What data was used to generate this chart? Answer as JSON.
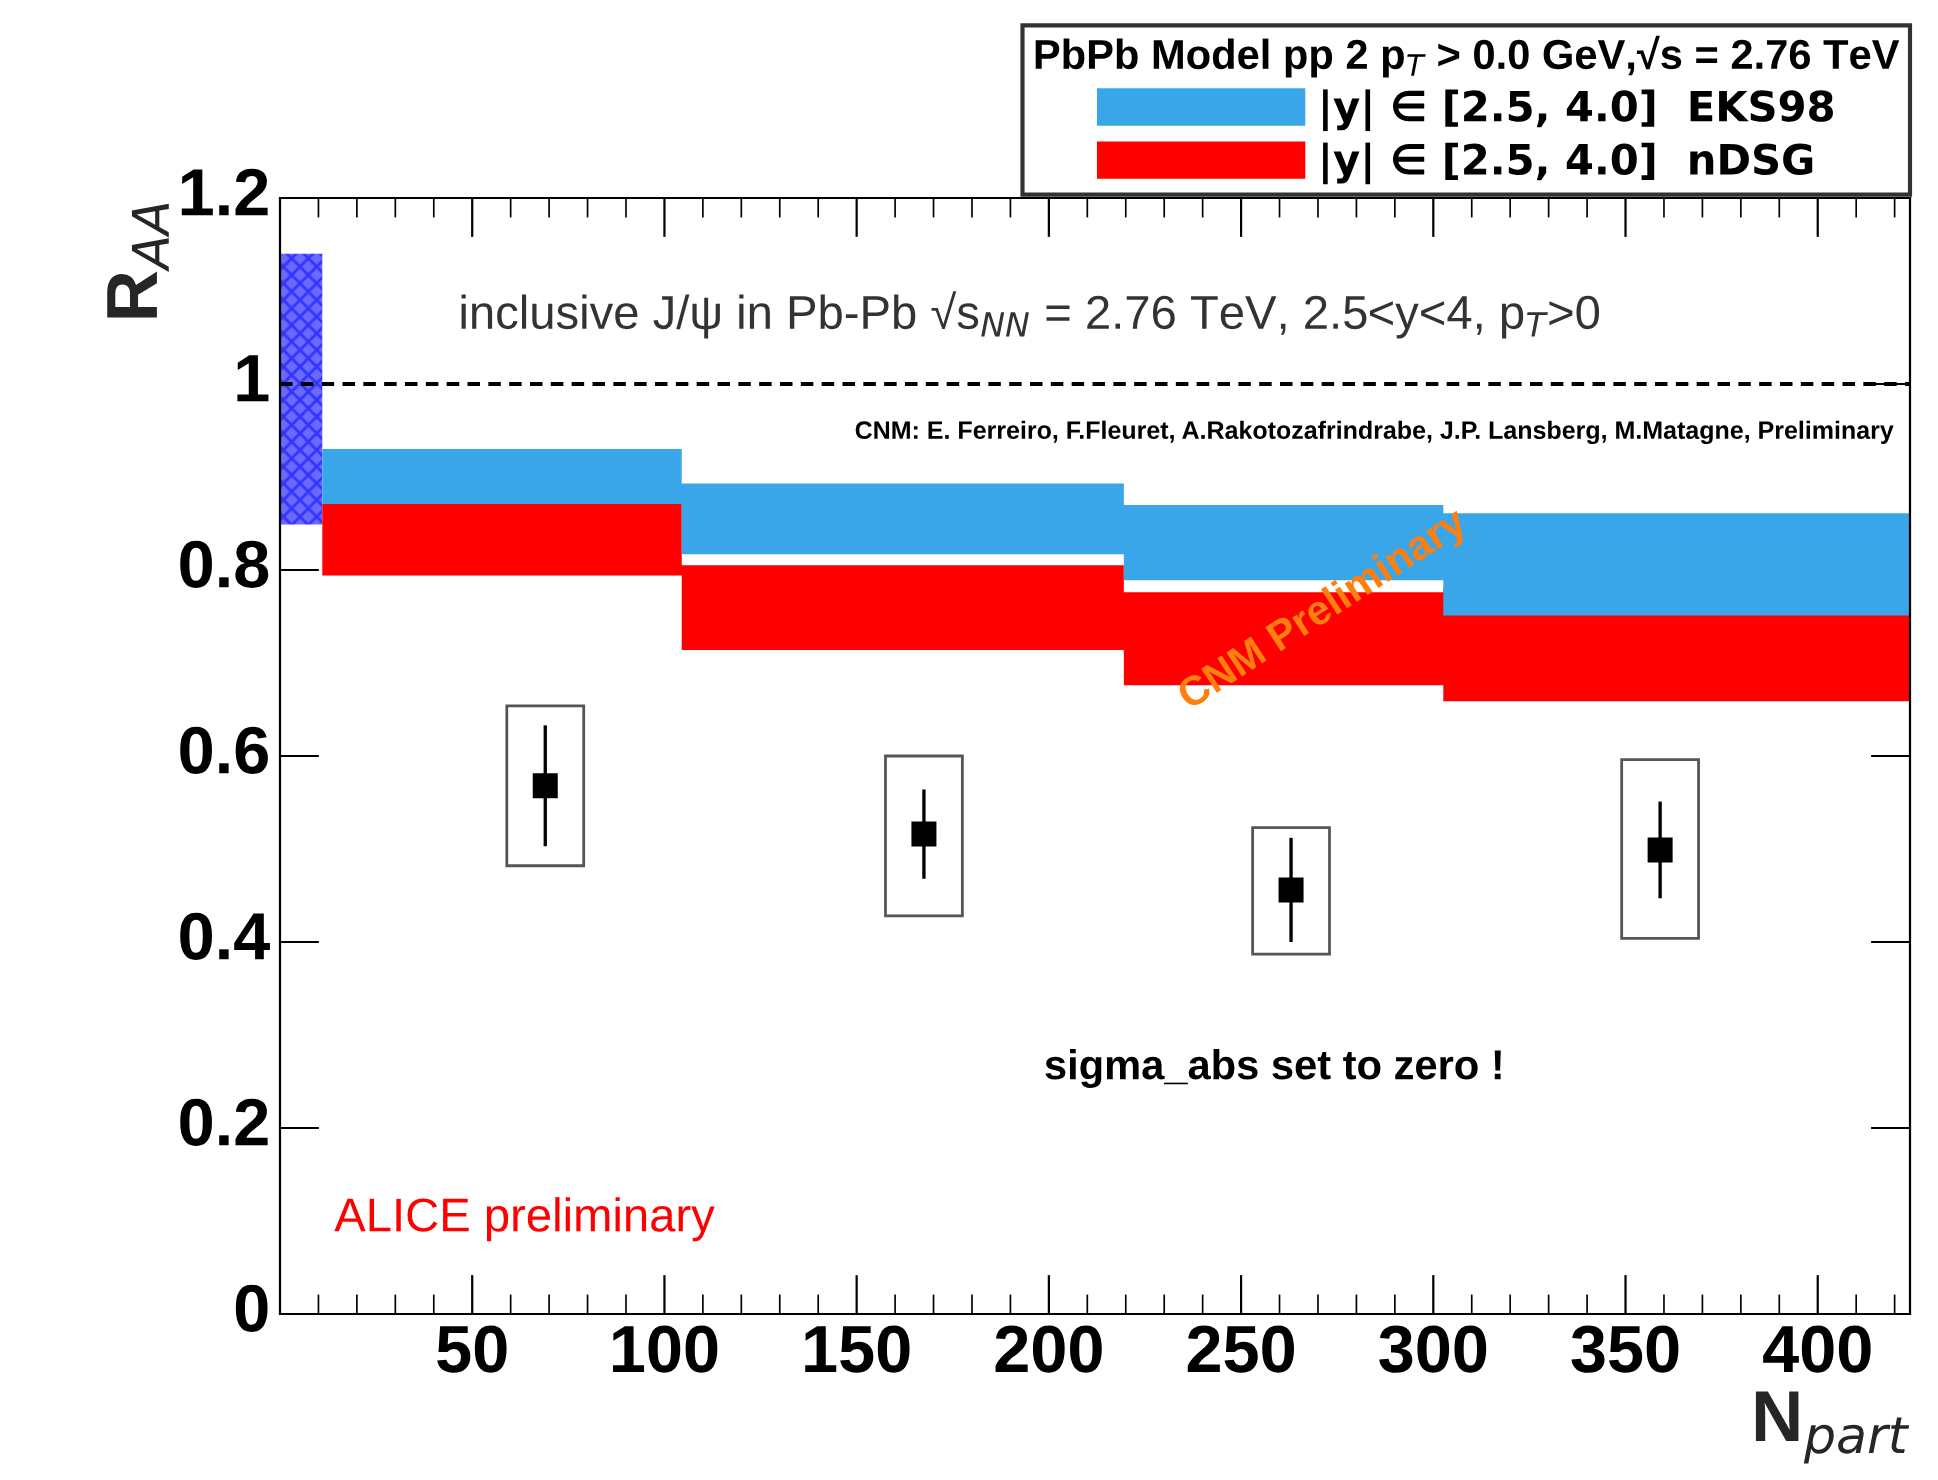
{
  "chart_data": {
    "type": "scatter",
    "xlabel": "N$_{part}$",
    "ylabel": "R$_{AA}$",
    "legend_title": "PbPb Model pp 2 p$_{T}$ > 0.0 GeV,√s = 2.76 TeV",
    "xlim": [
      0,
      424
    ],
    "ylim": [
      0,
      1.2
    ],
    "xticks": [
      50,
      100,
      150,
      200,
      250,
      300,
      350,
      400
    ],
    "yticks": [
      0,
      0.2,
      0.4,
      0.6,
      0.8,
      1,
      1.2
    ],
    "legend": "top right",
    "grid": false,
    "marker": "square",
    "series": [
      {
        "type": "area",
        "color": "#6a6aff",
        "x": [
          0,
          11
        ],
        "values": [
          null,
          null
        ],
        "lower": [
          0.849,
          0.849
        ],
        "upper": [
          1.14,
          1.14
        ]
      },
      {
        "type": "area",
        "name": "|y| ∈ [2.5, 4.0]  nDSG",
        "color": "#ff0000",
        "x": [
          11,
          104.5,
          104.5,
          219.5,
          219.5,
          302.6,
          302.6,
          424
        ],
        "values": [
          null,
          null,
          null,
          null,
          null,
          null,
          null,
          null
        ],
        "lower": [
          0.794,
          0.794,
          0.714,
          0.714,
          0.676,
          0.676,
          0.659,
          0.659
        ],
        "upper": [
          0.871,
          0.871,
          0.805,
          0.805,
          0.776,
          0.776,
          0.781,
          0.781
        ]
      },
      {
        "type": "area",
        "name": "|y| ∈ [2.5, 4.0]  EKS98",
        "color": "#3aa6ea",
        "x": [
          11,
          104.5,
          104.5,
          219.5,
          219.5,
          302.6,
          302.6,
          424
        ],
        "values": [
          null,
          null,
          null,
          null,
          null,
          null,
          null,
          null
        ],
        "lower": [
          0.871,
          0.871,
          0.817,
          0.817,
          0.789,
          0.789,
          0.751,
          0.751
        ],
        "upper": [
          0.93,
          0.93,
          0.893,
          0.893,
          0.87,
          0.87,
          0.861,
          0.861
        ]
      },
      {
        "type": "bar",
        "color": "#555555",
        "x": [
          69,
          167.5,
          263,
          359
        ],
        "base": [
          0.482,
          0.428,
          0.387,
          0.404
        ],
        "values": [
          0.172,
          0.172,
          0.136,
          0.192
        ]
      },
      {
        "color": "#000000",
        "x": [
          69,
          167.5,
          263,
          359
        ],
        "values": [
          0.568,
          0.516,
          0.456,
          0.499
        ],
        "errors": [
          0.065,
          0.048,
          0.056,
          0.052
        ]
      }
    ],
    "ref_lines": [
      {
        "axis": "y",
        "value": 1,
        "color": "#000000",
        "line_style": "dashed"
      }
    ],
    "annotations": [
      "inclusive J/ψ in Pb-Pb √s$_{NN}$ = 2.76 TeV, 2.5<y<4, p$_{T}$>0",
      "CNM: E. Ferreiro, F.Fleuret, A.Rakotozafrindrabe, J.P. Lansberg, M.Matagne, Preliminary",
      "CNM Preliminary",
      "sigma_abs set to zero !",
      "ALICE preliminary"
    ]
  }
}
